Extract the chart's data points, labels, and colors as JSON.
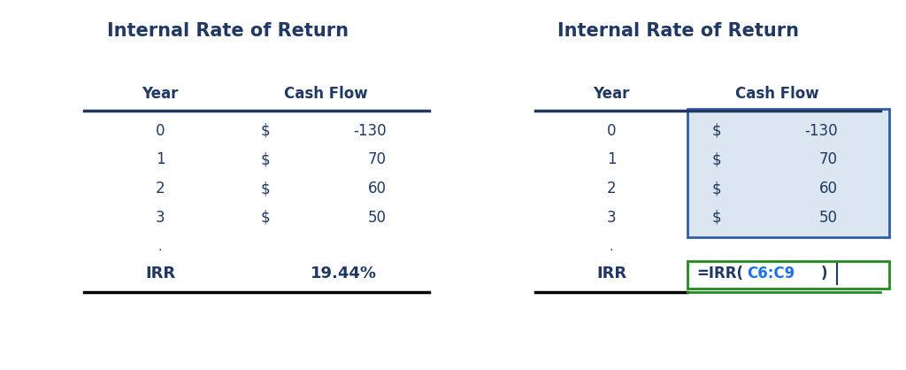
{
  "title": "Internal Rate of Return",
  "title_color": "#1F3864",
  "bg_color": "#ffffff",
  "header_color": "#1F3864",
  "data_color": "#1F3864",
  "years": [
    0,
    1,
    2,
    3
  ],
  "cash_flow_signs": [
    "$",
    "$",
    "$",
    "$"
  ],
  "cash_flow_values": [
    "-130",
    "70",
    "60",
    "50"
  ],
  "irr_label": "IRR",
  "irr_value_left": "19.44%",
  "irr_formula_parts": [
    "=IRR(",
    "C6:C9",
    ")"
  ],
  "irr_formula_colors": [
    "#1F3864",
    "#1a73e8",
    "#1F3864"
  ],
  "highlight_bg": "#dce6f1",
  "highlight_border": "#2E5DA6",
  "formula_border": "#1e8c1e",
  "formula_bg": "#ffffff",
  "dark_line_color": "#1F3864",
  "black_line_color": "#000000"
}
